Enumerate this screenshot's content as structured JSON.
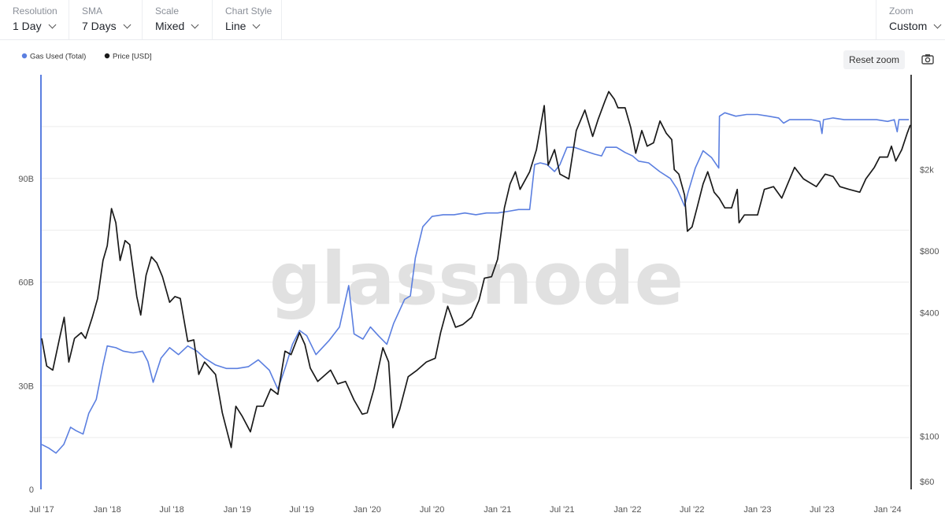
{
  "toolbar": {
    "resolution": {
      "label": "Resolution",
      "value": "1 Day"
    },
    "sma": {
      "label": "SMA",
      "value": "7 Days"
    },
    "scale": {
      "label": "Scale",
      "value": "Mixed"
    },
    "chart_style": {
      "label": "Chart Style",
      "value": "Line"
    },
    "zoom": {
      "label": "Zoom",
      "value": "Custom"
    }
  },
  "reset_zoom_label": "Reset zoom",
  "watermark": "glassnode",
  "colors": {
    "gas": "#5b7fe0",
    "price": "#1a1a1a",
    "grid": "#ececec"
  },
  "icons": {
    "camera": "camera-icon",
    "chevron": "chevron-down-icon"
  },
  "chart_data": {
    "type": "line",
    "legend_position": "top-left",
    "grid": true,
    "x_ticks": [
      "Jul '17",
      "Jan '18",
      "Jul '18",
      "Jan '19",
      "Jul '19",
      "Jan '20",
      "Jul '20",
      "Jan '21",
      "Jul '21",
      "Jan '22",
      "Jul '22",
      "Jan '23",
      "Jul '23",
      "Jan '24"
    ],
    "xlim": [
      "2017-07-01",
      "2024-03-05"
    ],
    "y_left": {
      "ticks": [
        "0",
        "30B",
        "60B",
        "90B"
      ],
      "tick_values": [
        0,
        30,
        60,
        90
      ],
      "ylim": [
        0,
        120
      ],
      "scale": "linear"
    },
    "y_right": {
      "ticks": [
        "$60",
        "$100",
        "$400",
        "$800",
        "$2k"
      ],
      "tick_values": [
        60,
        100,
        400,
        800,
        2000
      ],
      "ylim": [
        55,
        5800
      ],
      "scale": "log"
    },
    "series": [
      {
        "name": "Gas Used (Total)",
        "axis": "left",
        "points": [
          [
            "2017-07-01",
            13
          ],
          [
            "2017-07-20",
            12
          ],
          [
            "2017-08-10",
            10.5
          ],
          [
            "2017-09-01",
            13
          ],
          [
            "2017-09-20",
            18
          ],
          [
            "2017-10-05",
            17
          ],
          [
            "2017-10-25",
            16
          ],
          [
            "2017-11-10",
            22
          ],
          [
            "2017-12-01",
            26
          ],
          [
            "2017-12-20",
            36
          ],
          [
            "2018-01-01",
            41.5
          ],
          [
            "2018-01-25",
            41
          ],
          [
            "2018-02-15",
            40
          ],
          [
            "2018-03-15",
            39.5
          ],
          [
            "2018-04-10",
            40
          ],
          [
            "2018-04-25",
            37
          ],
          [
            "2018-05-10",
            31
          ],
          [
            "2018-06-01",
            38
          ],
          [
            "2018-06-25",
            41
          ],
          [
            "2018-07-20",
            39
          ],
          [
            "2018-08-15",
            41.5
          ],
          [
            "2018-09-10",
            40
          ],
          [
            "2018-10-01",
            38
          ],
          [
            "2018-11-01",
            36
          ],
          [
            "2018-12-01",
            35
          ],
          [
            "2019-01-01",
            35
          ],
          [
            "2019-02-01",
            35.5
          ],
          [
            "2019-03-01",
            37.5
          ],
          [
            "2019-04-01",
            34.5
          ],
          [
            "2019-04-25",
            29
          ],
          [
            "2019-05-15",
            35
          ],
          [
            "2019-06-05",
            42
          ],
          [
            "2019-06-25",
            46
          ],
          [
            "2019-07-15",
            44.5
          ],
          [
            "2019-08-10",
            39
          ],
          [
            "2019-09-15",
            43
          ],
          [
            "2019-10-15",
            47
          ],
          [
            "2019-11-10",
            59
          ],
          [
            "2019-11-25",
            45
          ],
          [
            "2019-12-20",
            43.5
          ],
          [
            "2020-01-10",
            47
          ],
          [
            "2020-02-01",
            44.5
          ],
          [
            "2020-02-25",
            42
          ],
          [
            "2020-03-15",
            48
          ],
          [
            "2020-04-15",
            55
          ],
          [
            "2020-05-01",
            56
          ],
          [
            "2020-05-15",
            67
          ],
          [
            "2020-06-05",
            76
          ],
          [
            "2020-07-01",
            79
          ],
          [
            "2020-08-01",
            79.5
          ],
          [
            "2020-09-01",
            79.5
          ],
          [
            "2020-10-01",
            80
          ],
          [
            "2020-11-01",
            79.5
          ],
          [
            "2020-12-01",
            80
          ],
          [
            "2021-01-01",
            80
          ],
          [
            "2021-02-01",
            80.5
          ],
          [
            "2021-03-01",
            81
          ],
          [
            "2021-04-01",
            81
          ],
          [
            "2021-04-15",
            94
          ],
          [
            "2021-05-01",
            94.5
          ],
          [
            "2021-05-20",
            94
          ],
          [
            "2021-06-10",
            92
          ],
          [
            "2021-06-25",
            94
          ],
          [
            "2021-07-15",
            99
          ],
          [
            "2021-08-05",
            99
          ],
          [
            "2021-09-01",
            98
          ],
          [
            "2021-10-01",
            97
          ],
          [
            "2021-10-20",
            96.5
          ],
          [
            "2021-11-01",
            99
          ],
          [
            "2021-12-01",
            99
          ],
          [
            "2021-12-25",
            97.5
          ],
          [
            "2022-01-15",
            96.5
          ],
          [
            "2022-02-01",
            95
          ],
          [
            "2022-03-01",
            94.5
          ],
          [
            "2022-04-01",
            92
          ],
          [
            "2022-05-01",
            90
          ],
          [
            "2022-05-20",
            87
          ],
          [
            "2022-06-10",
            82
          ],
          [
            "2022-06-20",
            86
          ],
          [
            "2022-07-10",
            93
          ],
          [
            "2022-08-01",
            98
          ],
          [
            "2022-08-25",
            96
          ],
          [
            "2022-09-14",
            93
          ],
          [
            "2022-09-16",
            108
          ],
          [
            "2022-10-01",
            109
          ],
          [
            "2022-11-01",
            108
          ],
          [
            "2022-12-01",
            108.5
          ],
          [
            "2023-01-01",
            108.5
          ],
          [
            "2023-02-01",
            108
          ],
          [
            "2023-03-01",
            107.5
          ],
          [
            "2023-03-15",
            106
          ],
          [
            "2023-04-01",
            107
          ],
          [
            "2023-05-01",
            107
          ],
          [
            "2023-06-01",
            107
          ],
          [
            "2023-06-25",
            106.5
          ],
          [
            "2023-07-01",
            103
          ],
          [
            "2023-07-05",
            107
          ],
          [
            "2023-08-01",
            107.5
          ],
          [
            "2023-09-01",
            107
          ],
          [
            "2023-10-01",
            107
          ],
          [
            "2023-11-01",
            107
          ],
          [
            "2023-12-01",
            107
          ],
          [
            "2024-01-01",
            106.5
          ],
          [
            "2024-01-20",
            107
          ],
          [
            "2024-01-28",
            103.5
          ],
          [
            "2024-02-02",
            107
          ],
          [
            "2024-02-20",
            107
          ],
          [
            "2024-03-01",
            107
          ]
        ]
      },
      {
        "name": "Price [USD]",
        "axis": "right",
        "points": [
          [
            "2017-07-01",
            300
          ],
          [
            "2017-07-15",
            220
          ],
          [
            "2017-08-01",
            210
          ],
          [
            "2017-08-20",
            300
          ],
          [
            "2017-09-02",
            380
          ],
          [
            "2017-09-15",
            230
          ],
          [
            "2017-10-01",
            300
          ],
          [
            "2017-10-20",
            320
          ],
          [
            "2017-11-01",
            300
          ],
          [
            "2017-11-20",
            380
          ],
          [
            "2017-12-05",
            470
          ],
          [
            "2017-12-20",
            720
          ],
          [
            "2018-01-01",
            850
          ],
          [
            "2018-01-13",
            1290
          ],
          [
            "2018-01-25",
            1100
          ],
          [
            "2018-02-06",
            720
          ],
          [
            "2018-02-20",
            900
          ],
          [
            "2018-03-05",
            860
          ],
          [
            "2018-03-25",
            480
          ],
          [
            "2018-04-05",
            390
          ],
          [
            "2018-04-20",
            610
          ],
          [
            "2018-05-05",
            750
          ],
          [
            "2018-05-20",
            700
          ],
          [
            "2018-06-05",
            600
          ],
          [
            "2018-06-25",
            450
          ],
          [
            "2018-07-10",
            480
          ],
          [
            "2018-07-25",
            470
          ],
          [
            "2018-08-15",
            290
          ],
          [
            "2018-09-01",
            295
          ],
          [
            "2018-09-15",
            200
          ],
          [
            "2018-10-01",
            230
          ],
          [
            "2018-11-01",
            200
          ],
          [
            "2018-11-20",
            130
          ],
          [
            "2018-12-15",
            88
          ],
          [
            "2018-12-28",
            140
          ],
          [
            "2019-01-15",
            125
          ],
          [
            "2019-02-07",
            105
          ],
          [
            "2019-02-25",
            140
          ],
          [
            "2019-03-15",
            140
          ],
          [
            "2019-04-05",
            170
          ],
          [
            "2019-04-25",
            160
          ],
          [
            "2019-05-15",
            260
          ],
          [
            "2019-06-01",
            250
          ],
          [
            "2019-06-25",
            320
          ],
          [
            "2019-07-10",
            280
          ],
          [
            "2019-07-25",
            215
          ],
          [
            "2019-08-15",
            185
          ],
          [
            "2019-09-20",
            210
          ],
          [
            "2019-10-10",
            180
          ],
          [
            "2019-11-01",
            185
          ],
          [
            "2019-11-25",
            150
          ],
          [
            "2019-12-18",
            128
          ],
          [
            "2020-01-01",
            130
          ],
          [
            "2020-01-20",
            170
          ],
          [
            "2020-02-14",
            270
          ],
          [
            "2020-03-01",
            230
          ],
          [
            "2020-03-13",
            110
          ],
          [
            "2020-04-01",
            135
          ],
          [
            "2020-04-25",
            195
          ],
          [
            "2020-05-20",
            210
          ],
          [
            "2020-06-15",
            230
          ],
          [
            "2020-07-10",
            240
          ],
          [
            "2020-07-25",
            320
          ],
          [
            "2020-08-14",
            430
          ],
          [
            "2020-09-05",
            340
          ],
          [
            "2020-09-25",
            350
          ],
          [
            "2020-10-20",
            380
          ],
          [
            "2020-11-10",
            460
          ],
          [
            "2020-11-25",
            590
          ],
          [
            "2020-12-15",
            600
          ],
          [
            "2021-01-01",
            730
          ],
          [
            "2021-01-20",
            1300
          ],
          [
            "2021-02-05",
            1700
          ],
          [
            "2021-02-20",
            1950
          ],
          [
            "2021-03-05",
            1600
          ],
          [
            "2021-04-01",
            1950
          ],
          [
            "2021-04-20",
            2500
          ],
          [
            "2021-05-12",
            4100
          ],
          [
            "2021-05-23",
            2100
          ],
          [
            "2021-06-10",
            2500
          ],
          [
            "2021-06-25",
            1900
          ],
          [
            "2021-07-20",
            1800
          ],
          [
            "2021-08-10",
            3100
          ],
          [
            "2021-09-03",
            3900
          ],
          [
            "2021-09-25",
            2900
          ],
          [
            "2021-10-10",
            3500
          ],
          [
            "2021-10-29",
            4300
          ],
          [
            "2021-11-09",
            4800
          ],
          [
            "2021-11-25",
            4400
          ],
          [
            "2021-12-05",
            4000
          ],
          [
            "2021-12-25",
            4000
          ],
          [
            "2022-01-10",
            3200
          ],
          [
            "2022-01-24",
            2400
          ],
          [
            "2022-02-10",
            3100
          ],
          [
            "2022-02-25",
            2600
          ],
          [
            "2022-03-15",
            2700
          ],
          [
            "2022-04-02",
            3450
          ],
          [
            "2022-04-20",
            3000
          ],
          [
            "2022-05-05",
            2800
          ],
          [
            "2022-05-12",
            2000
          ],
          [
            "2022-05-25",
            1900
          ],
          [
            "2022-06-10",
            1500
          ],
          [
            "2022-06-18",
            1000
          ],
          [
            "2022-07-01",
            1050
          ],
          [
            "2022-07-15",
            1300
          ],
          [
            "2022-08-01",
            1700
          ],
          [
            "2022-08-14",
            1950
          ],
          [
            "2022-09-01",
            1550
          ],
          [
            "2022-09-15",
            1450
          ],
          [
            "2022-10-01",
            1300
          ],
          [
            "2022-10-20",
            1300
          ],
          [
            "2022-11-05",
            1600
          ],
          [
            "2022-11-10",
            1100
          ],
          [
            "2022-11-25",
            1200
          ],
          [
            "2022-12-15",
            1200
          ],
          [
            "2023-01-01",
            1200
          ],
          [
            "2023-01-20",
            1600
          ],
          [
            "2023-02-15",
            1650
          ],
          [
            "2023-03-10",
            1450
          ],
          [
            "2023-04-15",
            2050
          ],
          [
            "2023-05-10",
            1800
          ],
          [
            "2023-06-15",
            1650
          ],
          [
            "2023-07-10",
            1900
          ],
          [
            "2023-08-01",
            1850
          ],
          [
            "2023-08-20",
            1650
          ],
          [
            "2023-09-15",
            1600
          ],
          [
            "2023-10-15",
            1550
          ],
          [
            "2023-11-01",
            1800
          ],
          [
            "2023-11-25",
            2050
          ],
          [
            "2023-12-10",
            2300
          ],
          [
            "2024-01-01",
            2300
          ],
          [
            "2024-01-12",
            2600
          ],
          [
            "2024-01-24",
            2200
          ],
          [
            "2024-02-10",
            2500
          ],
          [
            "2024-02-25",
            3000
          ],
          [
            "2024-03-05",
            3300
          ]
        ]
      }
    ]
  }
}
